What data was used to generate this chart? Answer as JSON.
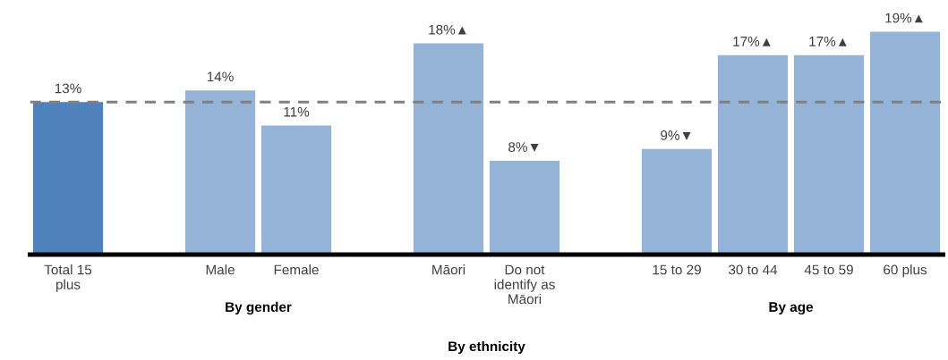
{
  "chart_data": {
    "type": "bar",
    "categories": [
      "Total 15 plus",
      null,
      "Male",
      "Female",
      null,
      "Māori",
      "Do not identify as Māori",
      null,
      "15 to 29",
      "30 to 44",
      "45 to 59",
      "60 plus"
    ],
    "values": [
      13,
      null,
      14,
      11,
      null,
      18,
      8,
      null,
      9,
      17,
      17,
      19
    ],
    "colors": [
      "#4f81bd",
      null,
      "#95b3d7",
      "#95b3d7",
      null,
      "#95b3d7",
      "#95b3d7",
      null,
      "#95b3d7",
      "#95b3d7",
      "#95b3d7",
      "#95b3d7"
    ],
    "value_labels": [
      "13%",
      null,
      "14%",
      "11%",
      null,
      "18%▲",
      "8%▼",
      null,
      "9%▼",
      "17%▲",
      "17%▲",
      "19%▲"
    ],
    "tick_labels": "x",
    "ref_lines": [
      {
        "axis": "y",
        "value": 13,
        "color": "#808080",
        "line_style": "dashed"
      }
    ],
    "annotations": [
      "By gender",
      "By age",
      "By ethnicity"
    ]
  }
}
